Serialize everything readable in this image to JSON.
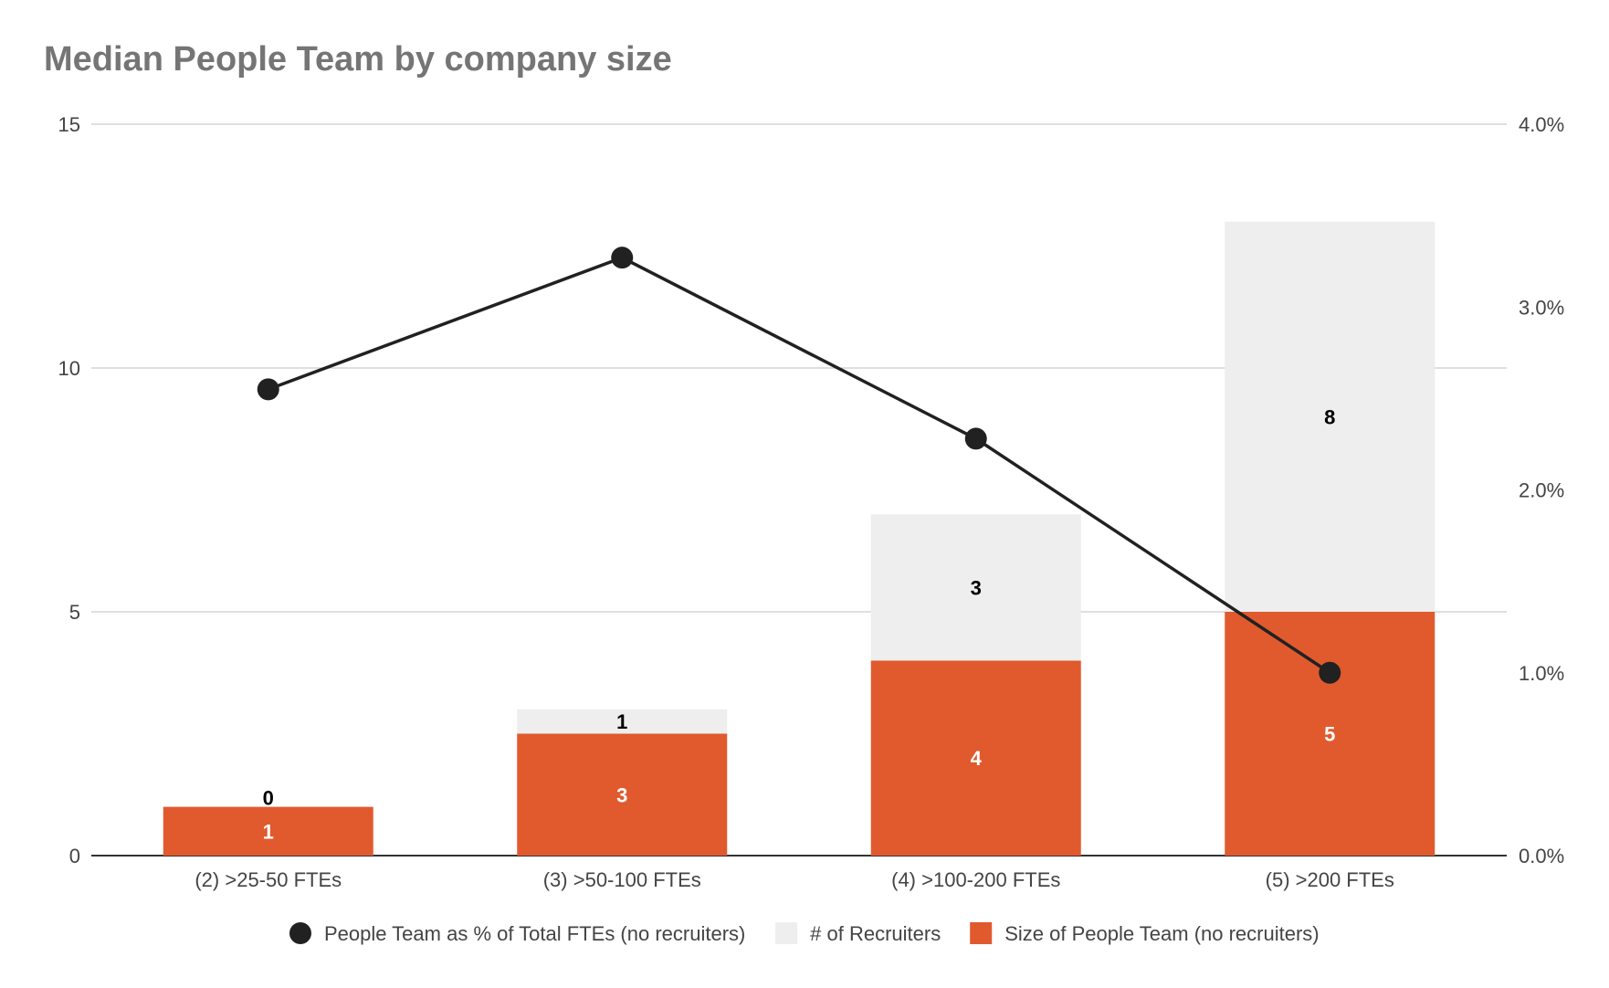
{
  "chart_data": {
    "type": "bar",
    "title": "Median People Team by company size",
    "categories": [
      "(2) >25-50 FTEs",
      "(3) >50-100 FTEs",
      "(4) >100-200 FTEs",
      "(5) >200 FTEs"
    ],
    "stacked": true,
    "series": [
      {
        "name": "Size of People Team (no recruiters)",
        "type": "bar",
        "axis": "left",
        "color": "#e05a2e",
        "values": [
          1,
          2.5,
          4,
          5
        ],
        "labels": [
          "1",
          "3",
          "4",
          "5"
        ],
        "label_color": "#ffffff"
      },
      {
        "name": "# of Recruiters",
        "type": "bar",
        "axis": "left",
        "color": "#eeeeee",
        "values": [
          0,
          0.5,
          3,
          8
        ],
        "labels": [
          "0",
          "1",
          "3",
          "8"
        ],
        "label_color": "#000000"
      },
      {
        "name": "People Team as % of Total FTEs (no recruiters)",
        "type": "line",
        "axis": "right",
        "color": "#212121",
        "values": [
          0.0255,
          0.0327,
          0.0228,
          0.01
        ]
      }
    ],
    "y_left": {
      "ylim": [
        0,
        15
      ],
      "ticks": [
        0,
        5,
        10,
        15
      ],
      "tick_labels": [
        "0",
        "5",
        "10",
        "15"
      ]
    },
    "y_right": {
      "ylim": [
        0,
        0.04
      ],
      "ticks": [
        0,
        0.01,
        0.02,
        0.03,
        0.04
      ],
      "tick_labels": [
        "0.0%",
        "1.0%",
        "2.0%",
        "3.0%",
        "4.0%"
      ]
    },
    "legend": {
      "position": "bottom",
      "order": [
        "People Team as % of Total FTEs (no recruiters)",
        "# of Recruiters",
        "Size of People Team (no recruiters)"
      ]
    },
    "grid": true
  }
}
